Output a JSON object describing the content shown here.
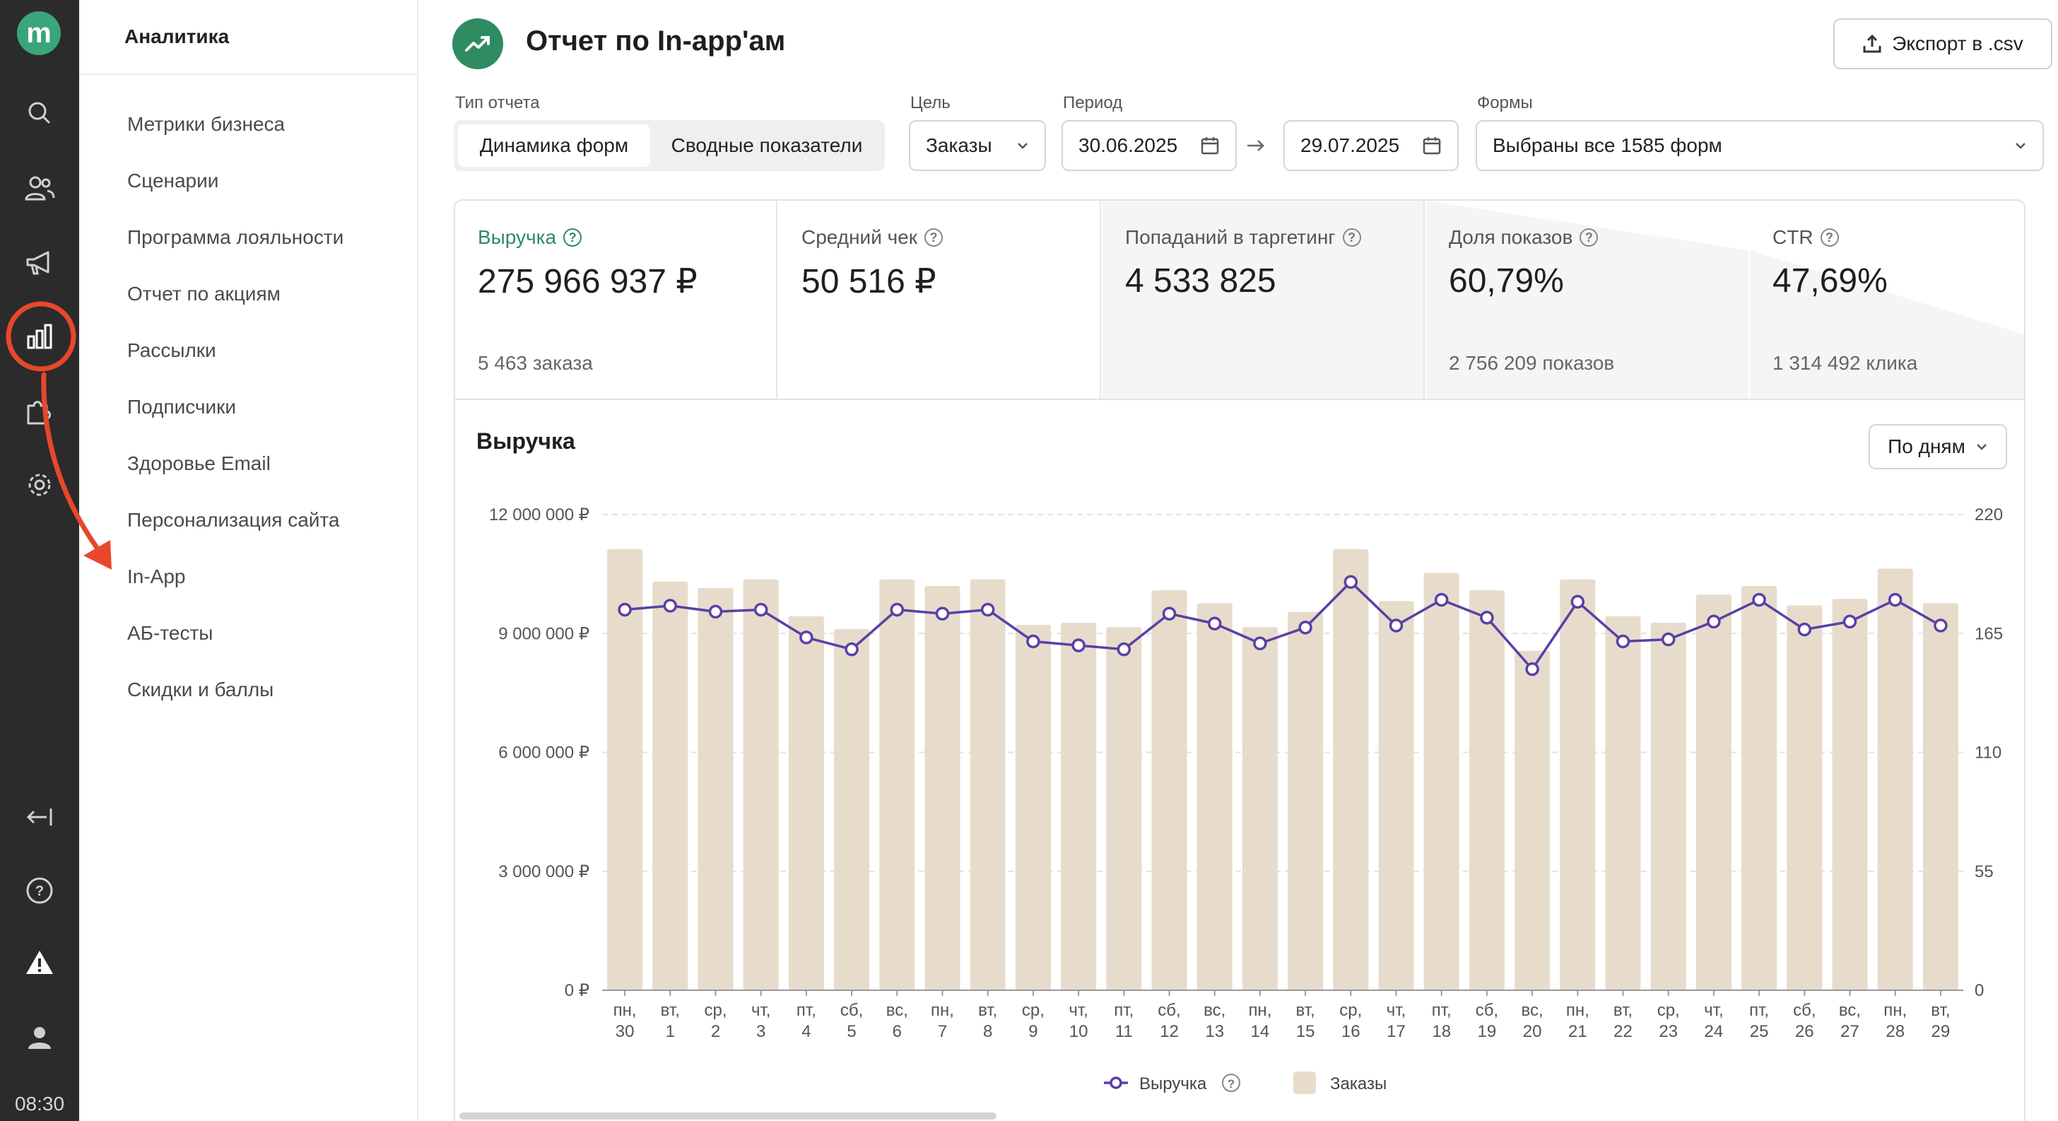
{
  "rail": {
    "logo": "m",
    "time": "08:30",
    "icons": [
      "search-icon",
      "users-icon",
      "megaphone-icon",
      "analytics-icon",
      "puzzle-icon",
      "gear-icon",
      "collapse-icon",
      "help-icon",
      "warning-icon",
      "profile-icon"
    ]
  },
  "submenu": {
    "title": "Аналитика",
    "items": [
      "Метрики бизнеса",
      "Сценарии",
      "Программа лояльности",
      "Отчет по акциям",
      "Рассылки",
      "Подписчики",
      "Здоровье Email",
      "Персонализация сайта",
      "In-App",
      "АБ-тесты",
      "Скидки и баллы"
    ]
  },
  "header": {
    "title": "Отчет по In-app'ам",
    "export_label": "Экспорт в .csv"
  },
  "filters": {
    "report_type_label": "Тип отчета",
    "report_types": [
      "Динамика форм",
      "Сводные показатели"
    ],
    "goal_label": "Цель",
    "goal_value": "Заказы",
    "period_label": "Период",
    "date_from": "30.06.2025",
    "date_to": "29.07.2025",
    "forms_label": "Формы",
    "forms_value": "Выбраны все 1585 форм"
  },
  "kpis": [
    {
      "label": "Выручка",
      "value": "275 966 937 ₽",
      "sub": "5 463 заказа"
    },
    {
      "label": "Средний чек",
      "value": "50 516 ₽",
      "sub": ""
    },
    {
      "label": "Попаданий в таргетинг",
      "value": "4 533 825",
      "sub": ""
    },
    {
      "label": "Доля показов",
      "value": "60,79%",
      "sub": "2 756 209 показов"
    },
    {
      "label": "CTR",
      "value": "47,69%",
      "sub": "1 314 492 клика"
    }
  ],
  "chart_section": {
    "title": "Выручка",
    "granularity": "По дням"
  },
  "colors": {
    "accent": "#2e8b62",
    "bar": "#e7dccb",
    "line": "#5a3fa6",
    "annotation": "#e8472c"
  },
  "chart_data": {
    "type": "bar",
    "title": "Выручка",
    "categories_top": [
      "пн,",
      "вт,",
      "ср,",
      "чт,",
      "пт,",
      "сб,",
      "вс,",
      "пн,",
      "вт,",
      "ср,",
      "чт,",
      "пт,",
      "сб,",
      "вс,",
      "пн,",
      "вт,",
      "ср,",
      "чт,",
      "пт,",
      "сб,",
      "вс,",
      "пн,",
      "вт,",
      "ср,",
      "чт,",
      "пт,",
      "сб,",
      "вс,",
      "пн,",
      "вт,"
    ],
    "categories_bottom": [
      "30",
      "1",
      "2",
      "3",
      "4",
      "5",
      "6",
      "7",
      "8",
      "9",
      "10",
      "11",
      "12",
      "13",
      "14",
      "15",
      "16",
      "17",
      "18",
      "19",
      "20",
      "21",
      "22",
      "23",
      "24",
      "25",
      "26",
      "27",
      "28",
      "29"
    ],
    "y_left": {
      "ticks": [
        0,
        3000000,
        6000000,
        9000000,
        12000000
      ],
      "tick_labels": [
        "0 ₽",
        "3 000 000 ₽",
        "6 000 000 ₽",
        "9 000 000 ₽",
        "12 000 000 ₽"
      ],
      "ylim": [
        0,
        12000000
      ]
    },
    "y_right": {
      "ticks": [
        0,
        55,
        110,
        165,
        220
      ],
      "tick_labels": [
        "0",
        "55",
        "110",
        "165",
        "220"
      ],
      "ylim": [
        0,
        220
      ]
    },
    "series": [
      {
        "name": "Выручка",
        "kind": "line",
        "axis": "left",
        "values": [
          9600000,
          9700000,
          9550000,
          9600000,
          8900000,
          8600000,
          9600000,
          9500000,
          9600000,
          8800000,
          8700000,
          8600000,
          9500000,
          9250000,
          8750000,
          9150000,
          10300000,
          9200000,
          9850000,
          9400000,
          8100000,
          9800000,
          8800000,
          8850000,
          9300000,
          9850000,
          9100000,
          9300000,
          9850000,
          9200000
        ]
      },
      {
        "name": "Заказы",
        "kind": "bar",
        "axis": "right",
        "values": [
          204,
          189,
          186,
          190,
          173,
          167,
          190,
          187,
          190,
          169,
          170,
          168,
          185,
          179,
          168,
          175,
          204,
          180,
          193,
          185,
          157,
          190,
          173,
          170,
          183,
          187,
          178,
          181,
          195,
          179
        ]
      }
    ],
    "legend": [
      "Выручка",
      "Заказы"
    ]
  }
}
